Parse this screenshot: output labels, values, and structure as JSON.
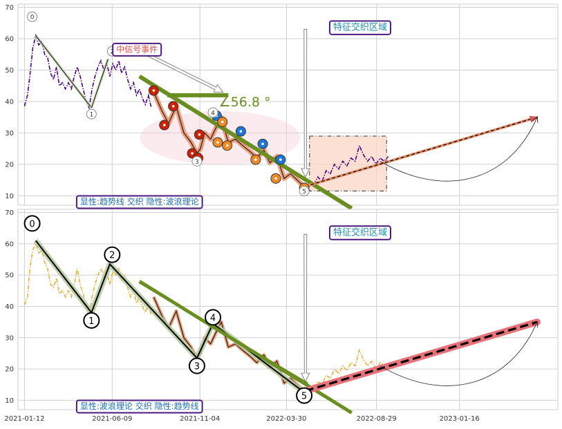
{
  "chart_data": [
    {
      "type": "line",
      "panel": "top",
      "x_ticks": [
        "2021-01-12",
        "2021-06-09",
        "2021-11-04",
        "2022-03-30",
        "2022-08-29",
        "2023-01-16"
      ],
      "y_ticks": [
        10,
        20,
        30,
        40,
        50,
        60,
        70
      ],
      "ylim": [
        7,
        71
      ],
      "xlim": [
        "2021-01-01",
        "2023-07-01"
      ],
      "grid": true,
      "price_color": "#4b0082",
      "price_series": [
        [
          "2021-01-12",
          38.5
        ],
        [
          "2021-01-17",
          42
        ],
        [
          "2021-01-21",
          48
        ],
        [
          "2021-01-26",
          57
        ],
        [
          "2021-01-31",
          61
        ],
        [
          "2021-02-05",
          58
        ],
        [
          "2021-02-10",
          59
        ],
        [
          "2021-02-15",
          55
        ],
        [
          "2021-02-20",
          54
        ],
        [
          "2021-02-25",
          49
        ],
        [
          "2021-03-02",
          47
        ],
        [
          "2021-03-07",
          51
        ],
        [
          "2021-03-12",
          45
        ],
        [
          "2021-03-17",
          46
        ],
        [
          "2021-03-22",
          44
        ],
        [
          "2021-03-27",
          46
        ],
        [
          "2021-04-01",
          44
        ],
        [
          "2021-04-06",
          48
        ],
        [
          "2021-04-11",
          51
        ],
        [
          "2021-04-16",
          48
        ],
        [
          "2021-04-21",
          44
        ],
        [
          "2021-04-26",
          40
        ],
        [
          "2021-05-01",
          38
        ],
        [
          "2021-05-06",
          44
        ],
        [
          "2021-05-11",
          48
        ],
        [
          "2021-05-16",
          51
        ],
        [
          "2021-05-21",
          53
        ],
        [
          "2021-05-26",
          50
        ],
        [
          "2021-05-31",
          52
        ],
        [
          "2021-06-05",
          48
        ],
        [
          "2021-06-10",
          52
        ],
        [
          "2021-06-15",
          50
        ],
        [
          "2021-06-20",
          53
        ],
        [
          "2021-06-25",
          49
        ],
        [
          "2021-06-30",
          51
        ],
        [
          "2021-07-05",
          47
        ],
        [
          "2021-07-10",
          44
        ],
        [
          "2021-07-15",
          46
        ],
        [
          "2021-07-20",
          42
        ],
        [
          "2021-07-25",
          44
        ],
        [
          "2021-07-30",
          41
        ],
        [
          "2021-08-04",
          39
        ],
        [
          "2021-08-09",
          42
        ],
        [
          "2021-08-14",
          38
        ]
      ],
      "late_series": [
        [
          "2022-05-15",
          13.5
        ],
        [
          "2022-05-22",
          16
        ],
        [
          "2022-05-29",
          14.5
        ],
        [
          "2022-06-05",
          18
        ],
        [
          "2022-06-12",
          17
        ],
        [
          "2022-06-19",
          20
        ],
        [
          "2022-06-26",
          18.5
        ],
        [
          "2022-07-03",
          21
        ],
        [
          "2022-07-10",
          19.5
        ],
        [
          "2022-07-17",
          22
        ],
        [
          "2022-07-24",
          21
        ],
        [
          "2022-07-31",
          26
        ],
        [
          "2022-08-07",
          23
        ],
        [
          "2022-08-14",
          21
        ],
        [
          "2022-08-21",
          22.5
        ],
        [
          "2022-08-28",
          20
        ],
        [
          "2022-09-04",
          22
        ],
        [
          "2022-09-11",
          21
        ],
        [
          "2022-09-18",
          22.5
        ]
      ],
      "wave_lines": [
        [
          [
            "2021-01-31",
            61
          ],
          [
            "2021-05-05",
            38
          ]
        ],
        [
          [
            "2021-05-05",
            38
          ],
          [
            "2021-06-02",
            53.5
          ]
        ]
      ],
      "corrective_path": [
        [
          "2021-08-18",
          43
        ],
        [
          "2021-09-01",
          37
        ],
        [
          "2021-09-12",
          33
        ],
        [
          "2021-09-25",
          38.5
        ],
        [
          "2021-10-08",
          30
        ],
        [
          "2021-10-20",
          27
        ],
        [
          "2021-10-30",
          23.5
        ],
        [
          "2021-11-05",
          25
        ],
        [
          "2021-11-12",
          30
        ],
        [
          "2021-11-22",
          28
        ],
        [
          "2021-12-02",
          32
        ],
        [
          "2021-12-10",
          35
        ],
        [
          "2021-12-16",
          31
        ],
        [
          "2021-12-22",
          27
        ],
        [
          "2022-01-03",
          28
        ],
        [
          "2022-01-15",
          26
        ],
        [
          "2022-01-28",
          24
        ],
        [
          "2022-02-08",
          22
        ],
        [
          "2022-02-20",
          24.5
        ],
        [
          "2022-03-02",
          20.5
        ],
        [
          "2022-03-14",
          22.5
        ],
        [
          "2022-03-26",
          15.5
        ],
        [
          "2022-04-06",
          17
        ],
        [
          "2022-04-20",
          14.5
        ],
        [
          "2022-05-01",
          12.5
        ]
      ],
      "signal_markers": [
        {
          "date": "2021-08-18",
          "value": 43.5,
          "color": "#cc2200"
        },
        {
          "date": "2021-09-05",
          "value": 32.5,
          "color": "#cc2200"
        },
        {
          "date": "2021-09-20",
          "value": 38.5,
          "color": "#cc2200"
        },
        {
          "date": "2021-10-22",
          "value": 23.5,
          "color": "#cc2200"
        },
        {
          "date": "2021-11-01",
          "value": 22,
          "color": "#cc2200"
        },
        {
          "date": "2021-11-03",
          "value": 29.5,
          "color": "#cc2200"
        },
        {
          "date": "2021-12-02",
          "value": 35.5,
          "color": "#1f77d4"
        },
        {
          "date": "2021-12-12",
          "value": 33.5,
          "color": "#ef8a24"
        },
        {
          "date": "2021-12-04",
          "value": 27,
          "color": "#ef8a24"
        },
        {
          "date": "2021-12-20",
          "value": 26,
          "color": "#ef8a24"
        },
        {
          "date": "2022-01-12",
          "value": 30.5,
          "color": "#1f77d4"
        },
        {
          "date": "2022-02-18",
          "value": 26.5,
          "color": "#1f77d4"
        },
        {
          "date": "2022-02-06",
          "value": 21.5,
          "color": "#ef8a24"
        },
        {
          "date": "2022-03-20",
          "value": 21.5,
          "color": "#1f77d4"
        },
        {
          "date": "2022-03-12",
          "value": 15.5,
          "color": "#ef8a24"
        },
        {
          "date": "2022-04-29",
          "value": 12.5,
          "color": "#ef8a24"
        }
      ],
      "pivot_labels": [
        {
          "label": "0",
          "date": "2021-01-25",
          "value": 67
        },
        {
          "label": "1",
          "date": "2021-05-05",
          "value": 36
        },
        {
          "label": "2",
          "date": "2021-06-09",
          "value": 56
        },
        {
          "label": "3",
          "date": "2021-10-30",
          "value": 21
        },
        {
          "label": "4",
          "date": "2021-11-26",
          "value": 36.5
        },
        {
          "label": "5",
          "date": "2022-04-29",
          "value": 11.5
        }
      ],
      "trendline_green": [
        [
          "2021-07-25",
          48
        ],
        [
          "2022-07-18",
          6
        ]
      ],
      "green_short_bar": [
        [
          "2021-09-10",
          42
        ],
        [
          "2021-12-22",
          42
        ]
      ],
      "angle_label": "∠56.8 °",
      "angle_label_pos": {
        "date": "2021-12-06",
        "value": 40
      },
      "ellipse": {
        "center": [
          "2021-12-08",
          28.5
        ],
        "rx_days": 135,
        "ry": 8.5
      },
      "hollow_arrow": [
        [
          "2021-08-07",
          55
        ],
        [
          "2021-12-13",
          43
        ]
      ],
      "down_arrow": [
        [
          "2022-05-01",
          63
        ],
        [
          "2022-05-01",
          16
        ]
      ],
      "future_projection": [
        [
          "2022-05-01",
          13
        ],
        [
          "2023-05-27",
          35
        ]
      ],
      "projection_arc": [
        [
          "2022-09-04",
          21
        ],
        [
          "2023-05-27",
          35
        ]
      ],
      "zone_rect": {
        "x0": "2022-05-08",
        "x1": "2022-09-15",
        "y0": 11.5,
        "y1": 29
      },
      "zone_label": "特征交织区域",
      "zone_label_pos": {
        "date": "2022-06-11",
        "value": 63.5
      },
      "signal_label": "中信号事件",
      "signal_label_pos": {
        "date": "2021-06-10",
        "value": 56.5
      },
      "caption": "显性:趋势线 交织 隐性:波浪理论",
      "caption_pos": {
        "date": "2021-04-10",
        "value": 8
      }
    },
    {
      "type": "line",
      "panel": "bottom",
      "x_ticks": [
        "2021-01-12",
        "2021-06-09",
        "2021-11-04",
        "2022-03-30",
        "2022-08-29",
        "2023-01-16"
      ],
      "y_ticks": [
        10,
        20,
        30,
        40,
        50,
        60,
        70
      ],
      "ylim": [
        7,
        71
      ],
      "xlim": [
        "2021-01-01",
        "2023-07-01"
      ],
      "grid": true,
      "price_color": "#e3b23c",
      "price_series": [
        [
          "2021-01-12",
          40.5
        ],
        [
          "2021-01-17",
          43
        ],
        [
          "2021-01-21",
          52
        ],
        [
          "2021-01-26",
          58
        ],
        [
          "2021-01-31",
          60
        ],
        [
          "2021-02-05",
          57
        ],
        [
          "2021-02-10",
          58
        ],
        [
          "2021-02-15",
          54
        ],
        [
          "2021-02-20",
          52
        ],
        [
          "2021-02-25",
          47
        ],
        [
          "2021-03-02",
          46
        ],
        [
          "2021-03-07",
          49
        ],
        [
          "2021-03-12",
          44
        ],
        [
          "2021-03-17",
          45
        ],
        [
          "2021-03-22",
          43
        ],
        [
          "2021-03-27",
          45
        ],
        [
          "2021-04-01",
          43
        ],
        [
          "2021-04-06",
          47
        ],
        [
          "2021-04-11",
          52
        ],
        [
          "2021-04-16",
          47
        ],
        [
          "2021-04-21",
          44
        ],
        [
          "2021-04-26",
          40
        ],
        [
          "2021-05-01",
          37
        ],
        [
          "2021-05-06",
          43
        ],
        [
          "2021-05-11",
          47
        ],
        [
          "2021-05-16",
          50
        ],
        [
          "2021-05-21",
          52
        ],
        [
          "2021-05-26",
          50
        ],
        [
          "2021-05-31",
          51
        ],
        [
          "2021-06-05",
          47
        ],
        [
          "2021-06-10",
          51
        ],
        [
          "2021-06-15",
          50
        ],
        [
          "2021-06-20",
          52
        ],
        [
          "2021-06-25",
          48
        ],
        [
          "2021-06-30",
          50
        ],
        [
          "2021-07-05",
          46
        ],
        [
          "2021-07-10",
          43
        ],
        [
          "2021-07-15",
          45
        ],
        [
          "2021-07-20",
          41
        ],
        [
          "2021-07-25",
          43
        ],
        [
          "2021-07-30",
          40
        ],
        [
          "2021-08-04",
          38
        ],
        [
          "2021-08-09",
          41
        ],
        [
          "2021-08-14",
          37
        ]
      ],
      "late_series": [
        [
          "2022-05-15",
          14
        ],
        [
          "2022-05-22",
          16
        ],
        [
          "2022-05-29",
          15
        ],
        [
          "2022-06-05",
          18
        ],
        [
          "2022-06-12",
          17
        ],
        [
          "2022-06-19",
          20
        ],
        [
          "2022-06-26",
          18.5
        ],
        [
          "2022-07-03",
          21
        ],
        [
          "2022-07-10",
          19.5
        ],
        [
          "2022-07-17",
          22
        ],
        [
          "2022-07-24",
          21
        ],
        [
          "2022-07-31",
          26
        ],
        [
          "2022-08-07",
          23
        ],
        [
          "2022-08-14",
          21
        ],
        [
          "2022-08-21",
          22.5
        ],
        [
          "2022-08-28",
          20
        ],
        [
          "2022-09-04",
          22
        ],
        [
          "2022-09-11",
          21
        ],
        [
          "2022-09-18",
          22
        ]
      ],
      "wave_path": [
        [
          "2021-01-31",
          61
        ],
        [
          "2021-05-05",
          38
        ],
        [
          "2021-06-05",
          53.5
        ],
        [
          "2021-10-30",
          23.5
        ],
        [
          "2021-11-26",
          34.5
        ],
        [
          "2022-04-29",
          12.5
        ]
      ],
      "corrective_path": [
        [
          "2021-08-18",
          43
        ],
        [
          "2021-09-01",
          37
        ],
        [
          "2021-09-12",
          33
        ],
        [
          "2021-09-25",
          38.5
        ],
        [
          "2021-10-08",
          30
        ],
        [
          "2021-10-20",
          27
        ],
        [
          "2021-10-30",
          23.5
        ],
        [
          "2021-11-05",
          25
        ],
        [
          "2021-11-12",
          30
        ],
        [
          "2021-11-22",
          28
        ],
        [
          "2021-12-02",
          32
        ],
        [
          "2021-12-10",
          35
        ],
        [
          "2021-12-16",
          31
        ],
        [
          "2021-12-22",
          27
        ],
        [
          "2022-01-03",
          28
        ],
        [
          "2022-01-15",
          26
        ],
        [
          "2022-01-28",
          24
        ],
        [
          "2022-02-08",
          22
        ],
        [
          "2022-02-20",
          24.5
        ],
        [
          "2022-03-02",
          20.5
        ],
        [
          "2022-03-14",
          22.5
        ],
        [
          "2022-03-26",
          15.5
        ],
        [
          "2022-04-06",
          17
        ],
        [
          "2022-04-20",
          14.5
        ],
        [
          "2022-05-01",
          12.5
        ]
      ],
      "pivot_labels": [
        {
          "label": "0",
          "date": "2021-01-25",
          "value": 66.5
        },
        {
          "label": "1",
          "date": "2021-05-05",
          "value": 35.5
        },
        {
          "label": "2",
          "date": "2021-06-09",
          "value": 56.5
        },
        {
          "label": "3",
          "date": "2021-10-30",
          "value": 21
        },
        {
          "label": "4",
          "date": "2021-11-26",
          "value": 36.5
        },
        {
          "label": "5",
          "date": "2022-04-29",
          "value": 11.5
        }
      ],
      "trendline_green": [
        [
          "2021-07-25",
          48
        ],
        [
          "2022-07-18",
          6
        ]
      ],
      "trendline_thin": [
        [
          "2021-07-25",
          47.5
        ],
        [
          "2022-05-05",
          15.5
        ]
      ],
      "down_arrow": [
        [
          "2022-05-01",
          63
        ],
        [
          "2022-05-01",
          16
        ]
      ],
      "future_projection": [
        [
          "2022-05-01",
          13
        ],
        [
          "2023-05-27",
          35
        ]
      ],
      "projection_arc": [
        [
          "2022-09-04",
          21
        ],
        [
          "2023-05-27",
          35
        ]
      ],
      "zone_label": "特征交织区域",
      "zone_label_pos": {
        "date": "2022-06-11",
        "value": 63.5
      },
      "caption": "显性:波浪理论 交织 隐性:趋势线",
      "caption_pos": {
        "date": "2021-04-10",
        "value": 8
      }
    }
  ]
}
